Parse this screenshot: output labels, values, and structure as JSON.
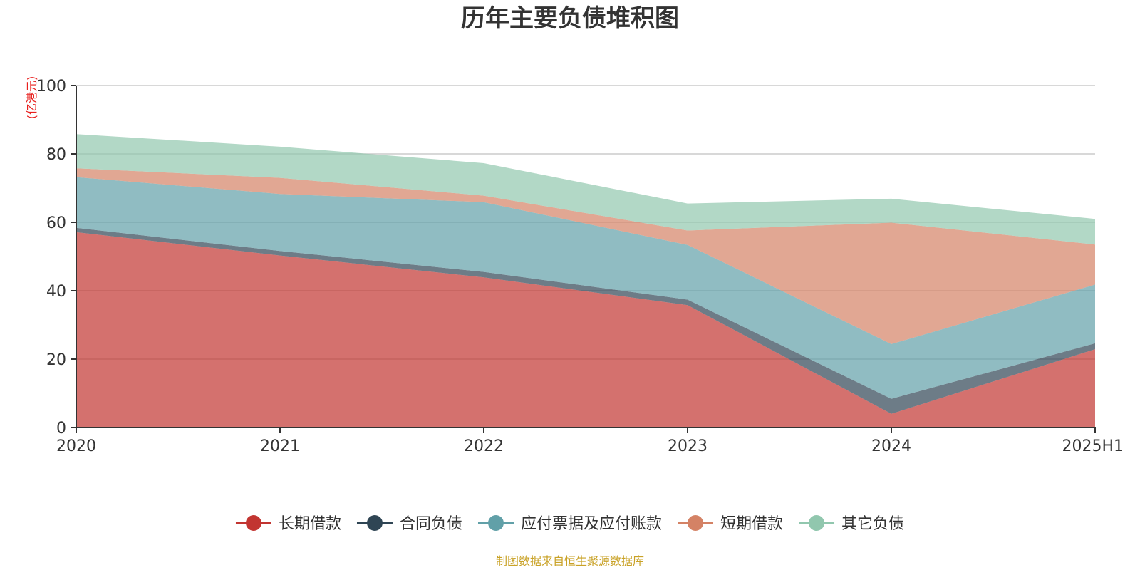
{
  "chart_data": {
    "type": "area",
    "stacked": true,
    "title": "历年主要负债堆积图",
    "y_unit_label": "(亿港元)",
    "source_note": "制图数据来自恒生聚源数据库",
    "categories": [
      "2020",
      "2021",
      "2022",
      "2023",
      "2024",
      "2025H1"
    ],
    "ylim": [
      0,
      100
    ],
    "yticks": [
      0,
      20,
      40,
      60,
      80,
      100
    ],
    "grid": true,
    "legend_position": "bottom",
    "series": [
      {
        "name": "长期借款",
        "color": "#c23531",
        "values": [
          57.1,
          50.3,
          43.9,
          35.8,
          4.0,
          22.9
        ]
      },
      {
        "name": "合同负债",
        "color": "#2f4554",
        "values": [
          1.3,
          1.3,
          1.6,
          1.6,
          4.4,
          1.7
        ]
      },
      {
        "name": "应付票据及应付账款",
        "color": "#61a0a8",
        "values": [
          14.8,
          16.7,
          20.4,
          16.0,
          16.0,
          17.2
        ]
      },
      {
        "name": "短期借款",
        "color": "#d48265",
        "values": [
          2.6,
          4.7,
          1.9,
          4.2,
          35.5,
          11.7
        ]
      },
      {
        "name": "其它负债",
        "color": "#91c7ae",
        "values": [
          10.0,
          9.1,
          9.5,
          7.9,
          7.0,
          7.5
        ]
      }
    ]
  }
}
